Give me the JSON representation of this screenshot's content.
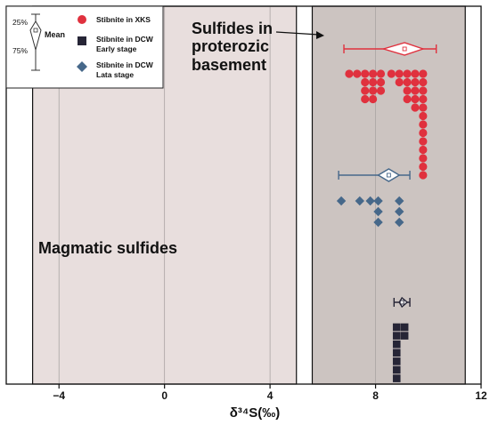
{
  "chart_data": {
    "type": "scatter",
    "xlabel": "δ³⁴S(‰)",
    "xlim": [
      -6,
      12
    ],
    "xticks": [
      -4,
      0,
      4,
      8,
      12
    ],
    "x_tick_labels": [
      "−4",
      "0",
      "4",
      "8",
      "12"
    ],
    "ylabel": "",
    "grid": "vertical lines at x ticks",
    "shaded_ranges": [
      {
        "label": "Magmatic sulfides",
        "x_range": [
          -5,
          5
        ],
        "color": "#e8dedd"
      },
      {
        "label": "Sulfides in proterozic basement",
        "x_range": [
          5.6,
          11.4
        ],
        "color": "#ccc4c1"
      }
    ],
    "legend": {
      "position": "top-left",
      "box_plot_key": {
        "upper": "25%",
        "lower": "75%",
        "mean": "Mean"
      },
      "entries": [
        {
          "label": "Stibnite in XKS",
          "marker": "circle",
          "color": "#e0313e"
        },
        {
          "label": "Stibnite in DCW Early stage",
          "marker": "square",
          "color": "#262536"
        },
        {
          "label": "Stibnite in DCW Lata stage",
          "marker": "diamond",
          "color": "#46688a"
        }
      ]
    },
    "annotations": [
      {
        "text_lines": [
          "Sulfides in",
          "proterozic",
          "basement"
        ],
        "arrow": true
      },
      {
        "text_lines": [
          "Magmatic sulfides"
        ],
        "arrow": false
      }
    ],
    "series": [
      {
        "name": "Stibnite in XKS",
        "marker": "circle",
        "color": "#e0313e",
        "summary": {
          "min": 6.8,
          "q1": 8.3,
          "mean": 9.1,
          "q3": 9.8,
          "max": 10.3
        },
        "stacks": [
          {
            "x": 7.0,
            "count": 1
          },
          {
            "x": 7.3,
            "count": 1
          },
          {
            "x": 7.6,
            "count": 4
          },
          {
            "x": 7.9,
            "count": 4
          },
          {
            "x": 8.2,
            "count": 3
          },
          {
            "x": 8.6,
            "count": 1
          },
          {
            "x": 8.9,
            "count": 2
          },
          {
            "x": 9.2,
            "count": 4
          },
          {
            "x": 9.5,
            "count": 5
          },
          {
            "x": 9.8,
            "count": 13
          }
        ]
      },
      {
        "name": "Stibnite in DCW Lata stage",
        "marker": "diamond",
        "color": "#46688a",
        "summary": {
          "min": 6.6,
          "q1": 8.1,
          "mean": 8.5,
          "q3": 8.9,
          "max": 9.3
        },
        "stacks": [
          {
            "x": 6.7,
            "count": 1
          },
          {
            "x": 7.4,
            "count": 1
          },
          {
            "x": 7.8,
            "count": 1
          },
          {
            "x": 8.1,
            "count": 3
          },
          {
            "x": 8.9,
            "count": 3
          }
        ]
      },
      {
        "name": "Stibnite in DCW Early stage",
        "marker": "square",
        "color": "#262536",
        "summary": {
          "min": 8.7,
          "q1": 8.9,
          "mean": 9.0,
          "q3": 9.2,
          "max": 9.3
        },
        "stacks": [
          {
            "x": 8.8,
            "count": 7
          },
          {
            "x": 9.1,
            "count": 2
          }
        ]
      }
    ]
  }
}
